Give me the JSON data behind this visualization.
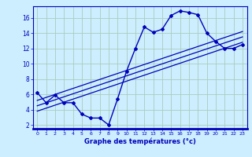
{
  "xlabel": "Graphe des températures (°c)",
  "background_color": "#cceeff",
  "grid_color": "#aaccbb",
  "line_color": "#0000bb",
  "x_hours": [
    0,
    1,
    2,
    3,
    4,
    5,
    6,
    7,
    8,
    9,
    10,
    11,
    12,
    13,
    14,
    15,
    16,
    17,
    18,
    19,
    20,
    21,
    22,
    23
  ],
  "temps": [
    6.2,
    4.9,
    5.9,
    4.9,
    4.9,
    3.4,
    2.9,
    2.9,
    2.0,
    5.4,
    9.0,
    12.0,
    14.8,
    14.1,
    14.5,
    16.3,
    16.9,
    16.7,
    16.4,
    14.0,
    12.9,
    12.0,
    12.0,
    12.5
  ],
  "trend_lines": [
    {
      "x0": 0,
      "y0": 3.8,
      "x1": 23,
      "y1": 12.8
    },
    {
      "x0": 0,
      "y0": 4.5,
      "x1": 23,
      "y1": 13.5
    },
    {
      "x0": 0,
      "y0": 5.2,
      "x1": 23,
      "y1": 14.2
    }
  ],
  "ylim": [
    1.5,
    17.5
  ],
  "yticks": [
    2,
    4,
    6,
    8,
    10,
    12,
    14,
    16
  ],
  "xlim": [
    -0.5,
    23.5
  ],
  "xticks": [
    0,
    1,
    2,
    3,
    4,
    5,
    6,
    7,
    8,
    9,
    10,
    11,
    12,
    13,
    14,
    15,
    16,
    17,
    18,
    19,
    20,
    21,
    22,
    23
  ]
}
